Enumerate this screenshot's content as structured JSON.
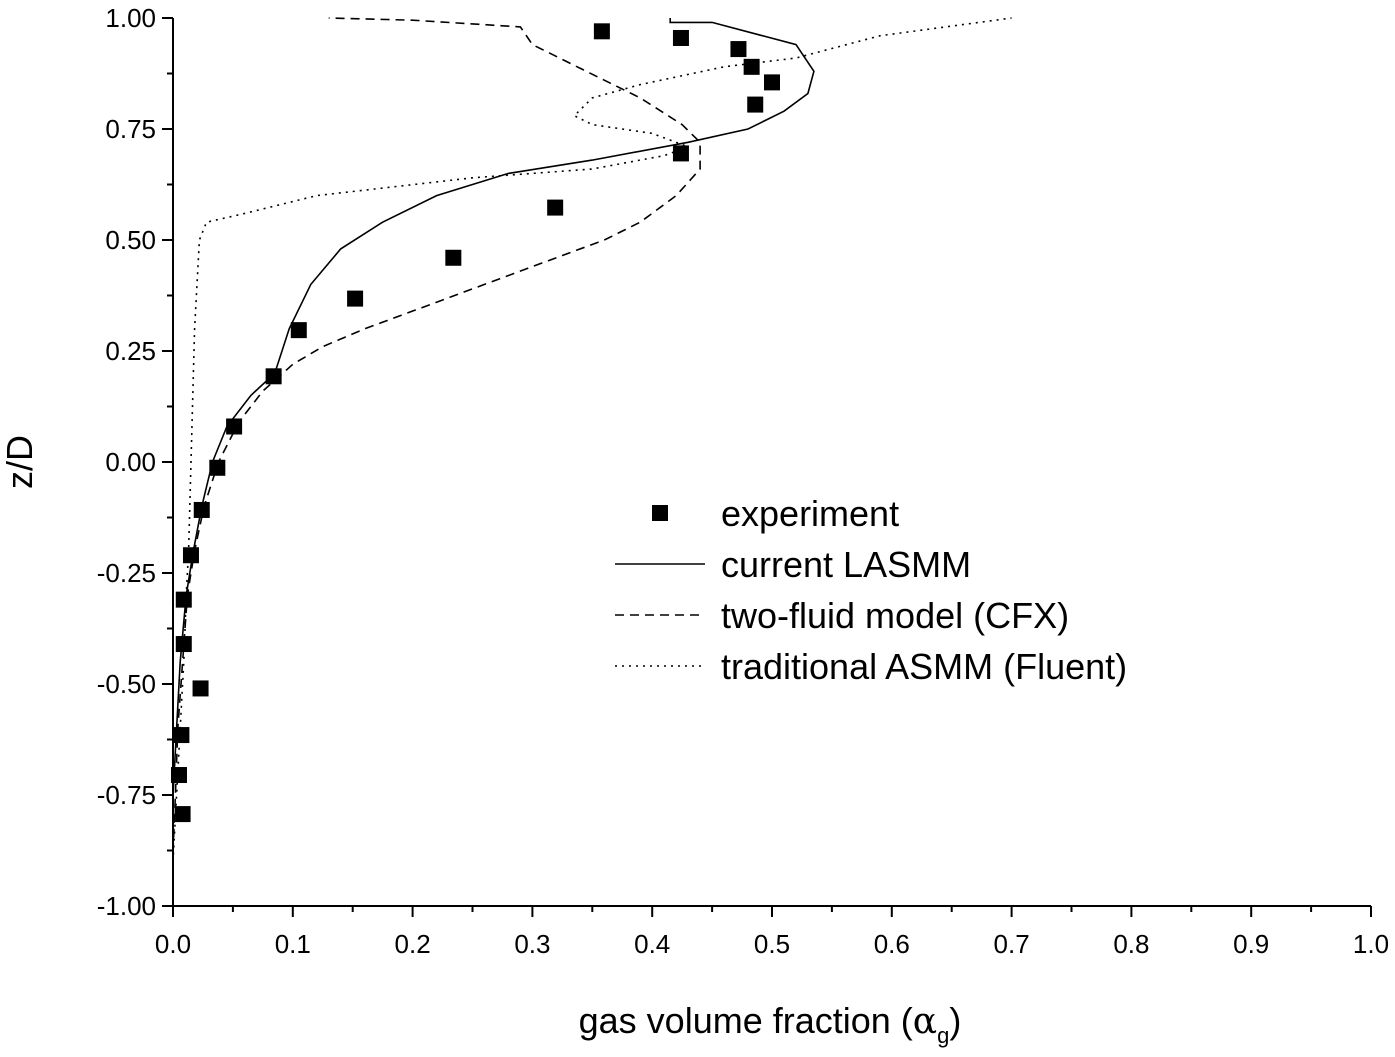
{
  "chart_data": {
    "type": "scatter",
    "xlabel": "gas volume fraction (",
    "xlabel_symbol": "α",
    "xlabel_subscript": "g",
    "xlabel_close": ")",
    "ylabel": "z/D",
    "xlim": [
      0.0,
      1.0
    ],
    "ylim": [
      -1.0,
      1.0
    ],
    "x_ticks": [
      0.0,
      0.1,
      0.2,
      0.3,
      0.4,
      0.5,
      0.6,
      0.7,
      0.8,
      0.9,
      1.0
    ],
    "x_tick_labels": [
      "0.0",
      "0.1",
      "0.2",
      "0.3",
      "0.4",
      "0.5",
      "0.6",
      "0.7",
      "0.8",
      "0.9",
      "1.0"
    ],
    "y_ticks": [
      -1.0,
      -0.75,
      -0.5,
      -0.25,
      0.0,
      0.25,
      0.5,
      0.75,
      1.0
    ],
    "y_tick_labels": [
      "-1.00",
      "-0.75",
      "-0.50",
      "-0.25",
      "0.00",
      "0.25",
      "0.50",
      "0.75",
      "1.00"
    ],
    "legend_position": "center-right",
    "grid": false,
    "series": [
      {
        "name": "experiment",
        "style": "square-marker",
        "color": "#000000",
        "points": [
          [
            0.358,
            0.97
          ],
          [
            0.424,
            0.955
          ],
          [
            0.472,
            0.93
          ],
          [
            0.483,
            0.89
          ],
          [
            0.5,
            0.855
          ],
          [
            0.486,
            0.805
          ],
          [
            0.424,
            0.695
          ],
          [
            0.319,
            0.573
          ],
          [
            0.234,
            0.46
          ],
          [
            0.152,
            0.368
          ],
          [
            0.105,
            0.297
          ],
          [
            0.084,
            0.193
          ],
          [
            0.051,
            0.08
          ],
          [
            0.037,
            -0.013
          ],
          [
            0.024,
            -0.108
          ],
          [
            0.015,
            -0.21
          ],
          [
            0.009,
            -0.31
          ],
          [
            0.009,
            -0.41
          ],
          [
            0.023,
            -0.51
          ],
          [
            0.007,
            -0.615
          ],
          [
            0.005,
            -0.705
          ],
          [
            0.008,
            -0.793
          ]
        ]
      },
      {
        "name": "current LASMM",
        "style": "solid",
        "color": "#000000",
        "points": [
          [
            0.0,
            -0.9
          ],
          [
            0.0,
            -0.75
          ],
          [
            0.003,
            -0.6
          ],
          [
            0.006,
            -0.45
          ],
          [
            0.011,
            -0.3
          ],
          [
            0.017,
            -0.2
          ],
          [
            0.024,
            -0.1
          ],
          [
            0.033,
            0.0
          ],
          [
            0.045,
            0.08
          ],
          [
            0.065,
            0.15
          ],
          [
            0.085,
            0.2
          ],
          [
            0.097,
            0.3
          ],
          [
            0.115,
            0.4
          ],
          [
            0.14,
            0.48
          ],
          [
            0.175,
            0.54
          ],
          [
            0.22,
            0.6
          ],
          [
            0.28,
            0.65
          ],
          [
            0.35,
            0.68
          ],
          [
            0.43,
            0.72
          ],
          [
            0.48,
            0.75
          ],
          [
            0.51,
            0.79
          ],
          [
            0.53,
            0.83
          ],
          [
            0.535,
            0.88
          ],
          [
            0.52,
            0.94
          ],
          [
            0.45,
            0.99
          ],
          [
            0.415,
            0.99
          ],
          [
            0.415,
            1.0
          ]
        ]
      },
      {
        "name": "two-fluid model (CFX)",
        "style": "dashed",
        "color": "#000000",
        "points": [
          [
            0.0,
            -0.88
          ],
          [
            0.002,
            -0.75
          ],
          [
            0.004,
            -0.6
          ],
          [
            0.008,
            -0.45
          ],
          [
            0.012,
            -0.3
          ],
          [
            0.018,
            -0.2
          ],
          [
            0.026,
            -0.1
          ],
          [
            0.038,
            0.0
          ],
          [
            0.055,
            0.09
          ],
          [
            0.075,
            0.16
          ],
          [
            0.1,
            0.22
          ],
          [
            0.125,
            0.26
          ],
          [
            0.16,
            0.3
          ],
          [
            0.22,
            0.36
          ],
          [
            0.3,
            0.44
          ],
          [
            0.36,
            0.5
          ],
          [
            0.39,
            0.54
          ],
          [
            0.42,
            0.6
          ],
          [
            0.44,
            0.66
          ],
          [
            0.44,
            0.72
          ],
          [
            0.425,
            0.76
          ],
          [
            0.39,
            0.82
          ],
          [
            0.33,
            0.9
          ],
          [
            0.3,
            0.94
          ],
          [
            0.29,
            0.98
          ],
          [
            0.2,
            0.995
          ],
          [
            0.13,
            1.0
          ]
        ]
      },
      {
        "name": "traditional ASMM (Fluent)",
        "style": "dotted",
        "color": "#000000",
        "points": [
          [
            0.0,
            -0.9
          ],
          [
            0.003,
            -0.75
          ],
          [
            0.006,
            -0.6
          ],
          [
            0.009,
            -0.45
          ],
          [
            0.011,
            -0.3
          ],
          [
            0.013,
            -0.2
          ],
          [
            0.014,
            -0.1
          ],
          [
            0.015,
            0.0
          ],
          [
            0.016,
            0.1
          ],
          [
            0.017,
            0.2
          ],
          [
            0.018,
            0.3
          ],
          [
            0.02,
            0.4
          ],
          [
            0.022,
            0.5
          ],
          [
            0.028,
            0.54
          ],
          [
            0.06,
            0.56
          ],
          [
            0.09,
            0.58
          ],
          [
            0.12,
            0.6
          ],
          [
            0.25,
            0.64
          ],
          [
            0.35,
            0.66
          ],
          [
            0.41,
            0.69
          ],
          [
            0.43,
            0.71
          ],
          [
            0.4,
            0.74
          ],
          [
            0.35,
            0.76
          ],
          [
            0.335,
            0.78
          ],
          [
            0.35,
            0.82
          ],
          [
            0.39,
            0.85
          ],
          [
            0.46,
            0.89
          ],
          [
            0.52,
            0.91
          ],
          [
            0.59,
            0.96
          ],
          [
            0.7,
            1.0
          ]
        ]
      }
    ]
  }
}
